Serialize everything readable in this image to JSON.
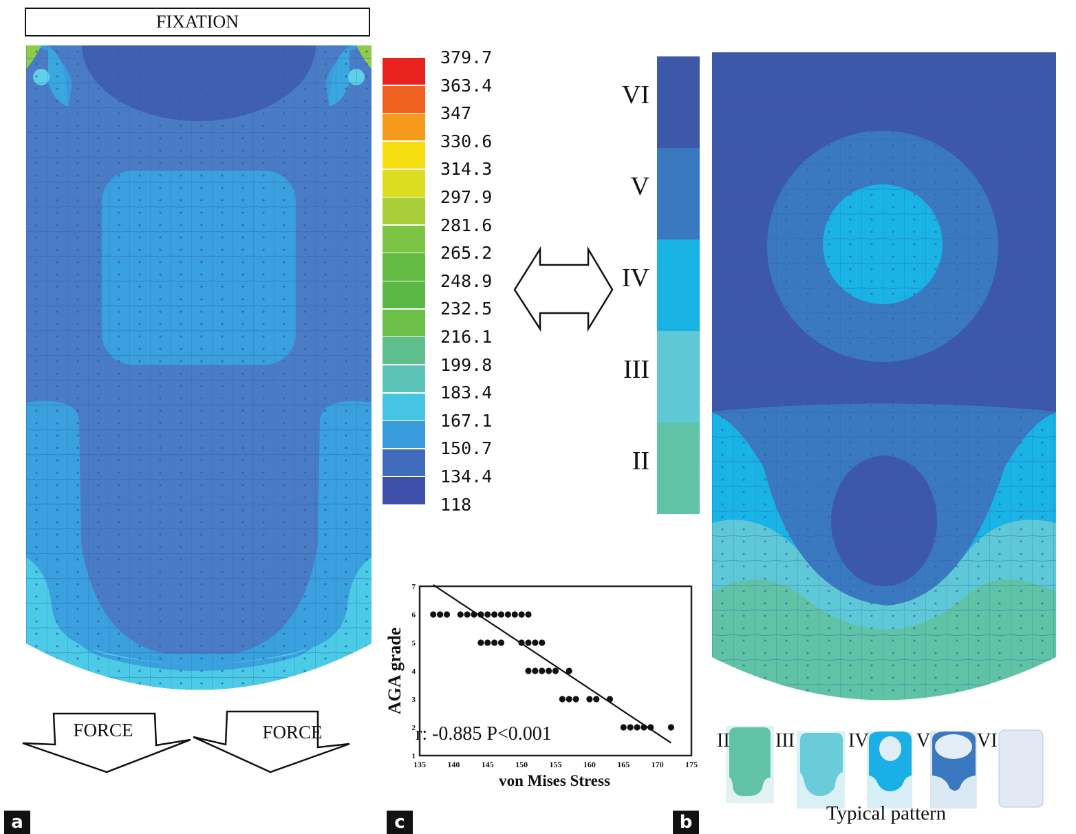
{
  "figure": {
    "panel_a": {
      "tag": "a",
      "fixation_label": "FIXATION",
      "force_labels": [
        "FORCE",
        "FORCE"
      ],
      "stress_legend": {
        "labels": [
          "379.7",
          "363.4",
          "347",
          "330.6",
          "314.3",
          "297.9",
          "281.6",
          "265.2",
          "248.9",
          "232.5",
          "216.1",
          "199.8",
          "183.4",
          "167.1",
          "150.7",
          "134.4",
          "118"
        ],
        "colors": [
          "#e8231f",
          "#f0601f",
          "#f59a1a",
          "#f6df10",
          "#dbde1f",
          "#a9cf38",
          "#7cc444",
          "#63bb43",
          "#5cb845",
          "#6cc04a",
          "#5fbf8c",
          "#5bc3b8",
          "#47c3e3",
          "#3a9cdc",
          "#3f6cbd",
          "#3d4fa8"
        ]
      }
    },
    "panel_b": {
      "tag": "b",
      "grade_scale": [
        {
          "label": "VI",
          "color": "#3d58a8"
        },
        {
          "label": "V",
          "color": "#3a79c0"
        },
        {
          "label": "IV",
          "color": "#1ab3e6"
        },
        {
          "label": "III",
          "color": "#5fc8d6"
        },
        {
          "label": "II",
          "color": "#60c3a5"
        }
      ],
      "typical_patterns": {
        "caption": "Typical pattern",
        "labels": [
          "II",
          "III",
          "IV",
          "V",
          "VI"
        ]
      }
    },
    "panel_c": {
      "tag": "c"
    },
    "arrow": "double-headed-arrow"
  },
  "chart_data": {
    "type": "scatter",
    "title": "",
    "xlabel": "von Mises Stress",
    "ylabel": "AGA grade",
    "xlim": [
      135,
      175
    ],
    "ylim": [
      1,
      7
    ],
    "xticks": [
      135,
      140,
      145,
      150,
      155,
      160,
      165,
      170,
      175
    ],
    "yticks": [
      1,
      2,
      3,
      4,
      5,
      6,
      7
    ],
    "grid": false,
    "annotation": "r: -0.885 P<0.001",
    "series": [
      {
        "name": "observations",
        "points": [
          [
            137,
            6
          ],
          [
            138,
            6
          ],
          [
            139,
            6
          ],
          [
            141,
            6
          ],
          [
            142,
            6
          ],
          [
            143,
            6
          ],
          [
            144,
            6
          ],
          [
            145,
            6
          ],
          [
            146,
            6
          ],
          [
            147,
            6
          ],
          [
            148,
            6
          ],
          [
            149,
            6
          ],
          [
            150,
            6
          ],
          [
            151,
            6
          ],
          [
            144,
            5
          ],
          [
            145,
            5
          ],
          [
            146,
            5
          ],
          [
            147,
            5
          ],
          [
            150,
            5
          ],
          [
            151,
            5
          ],
          [
            152,
            5
          ],
          [
            153,
            5
          ],
          [
            151,
            4
          ],
          [
            152,
            4
          ],
          [
            153,
            4
          ],
          [
            154,
            4
          ],
          [
            155,
            4
          ],
          [
            157,
            4
          ],
          [
            156,
            3
          ],
          [
            157,
            3
          ],
          [
            158,
            3
          ],
          [
            160,
            3
          ],
          [
            161,
            3
          ],
          [
            163,
            3
          ],
          [
            165,
            2
          ],
          [
            166,
            2
          ],
          [
            167,
            2
          ],
          [
            168,
            2
          ],
          [
            169,
            2
          ],
          [
            172,
            2
          ]
        ]
      }
    ],
    "regression_line": {
      "x": [
        137,
        172
      ],
      "y": [
        7.05,
        1.45
      ]
    }
  }
}
